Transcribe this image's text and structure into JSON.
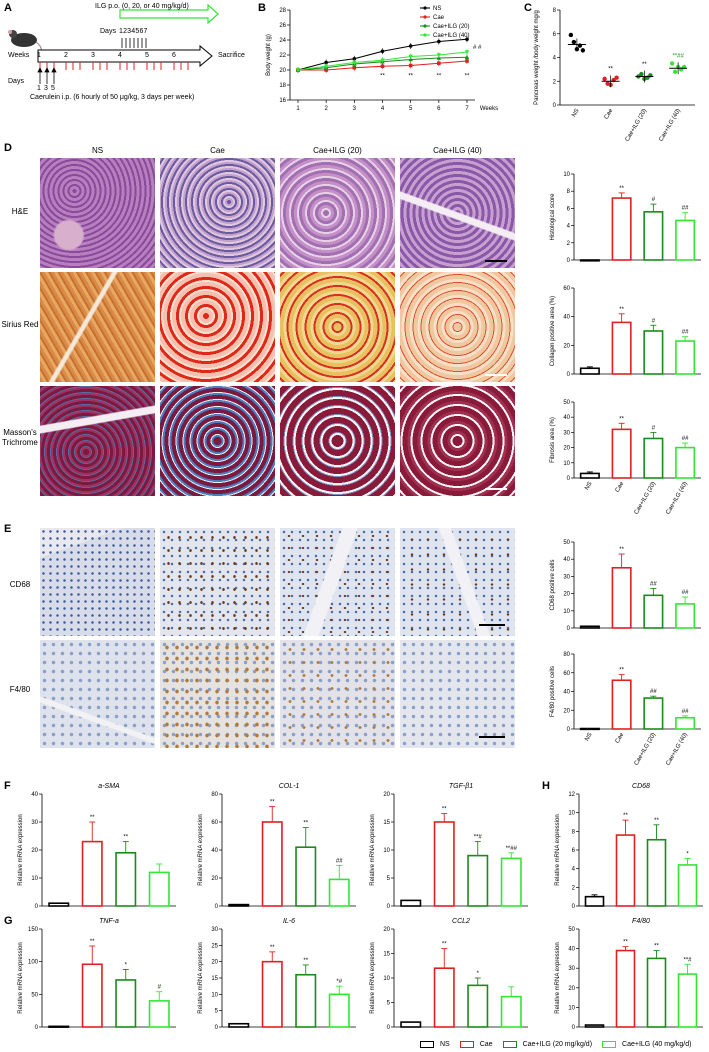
{
  "panels": {
    "A": {
      "letter": "A",
      "weeks_label": "Weeks",
      "sacrifice_label": "Sacrifice",
      "days_top_label": "Days",
      "days_top_values": "1234567",
      "ilg_label": "ILG p.o. (0, 20, or 40 mg/kg/d)",
      "week_ticks": [
        "1",
        "2",
        "3",
        "4",
        "5",
        "6"
      ],
      "days_bottom_label": "Days",
      "days_bottom_values": [
        "1",
        "3",
        "5"
      ],
      "caerulein_label": "Caerulein i.p. (6 hourly of 50 μg/kg, 3 days per week)"
    },
    "B": {
      "letter": "B",
      "weeks_unit": "Weeks",
      "sig_bottom": [
        "**",
        "**",
        "**",
        "**"
      ],
      "sig_top": "**",
      "sig_hash": "# #"
    },
    "C": {
      "letter": "C",
      "sig": [
        "**",
        "**",
        "**##"
      ]
    },
    "D": {
      "letter": "D",
      "col_titles": [
        "NS",
        "Cae",
        "Cae+ILG (20)",
        "Cae+ILG (40)"
      ],
      "row_labels": [
        "H&E",
        "Sirius Red",
        "Masson's\nTrichrome"
      ]
    },
    "E": {
      "letter": "E",
      "row_labels": [
        "CD68",
        "F4/80"
      ]
    },
    "F": {
      "letter": "F"
    },
    "G": {
      "letter": "G"
    },
    "H": {
      "letter": "H"
    },
    "legend": {
      "items": [
        {
          "label": "NS",
          "color": "#000000"
        },
        {
          "label": "Cae",
          "color": "#e02020"
        },
        {
          "label": "Cae+ILG (20 mg/kg/d)",
          "color": "#1a8a1a"
        },
        {
          "label": "Cae+ILG (40 mg/kg/d)",
          "color": "#33e633"
        }
      ]
    }
  },
  "chart_data": [
    {
      "id": "B",
      "type": "line",
      "ylabel": "Body weight (g)",
      "xlabel": "Weeks",
      "x": [
        1,
        2,
        3,
        4,
        5,
        6,
        7
      ],
      "ylim": [
        16,
        28
      ],
      "yticks": [
        16,
        18,
        20,
        22,
        24,
        26,
        28
      ],
      "series": [
        {
          "name": "NS",
          "color": "#000000",
          "marker": "circle",
          "values": [
            20.0,
            21.0,
            21.5,
            22.5,
            23.2,
            23.8,
            24.1
          ]
        },
        {
          "name": "Cae",
          "color": "#e02020",
          "marker": "square",
          "values": [
            20.0,
            20.0,
            20.3,
            20.5,
            20.6,
            20.9,
            21.2
          ]
        },
        {
          "name": "Cae+ILG (20)",
          "color": "#1a8a1a",
          "marker": "triangle",
          "values": [
            20.0,
            20.3,
            20.8,
            21.1,
            21.4,
            21.6,
            21.7
          ]
        },
        {
          "name": "Cae+ILG (40)",
          "color": "#33e633",
          "marker": "triangle-down",
          "values": [
            20.0,
            20.5,
            21.0,
            21.3,
            21.8,
            22.0,
            22.4
          ]
        }
      ]
    },
    {
      "id": "C",
      "type": "scatter",
      "ylabel": "Pancreas weight /body weight mg/g",
      "categories": [
        "NS",
        "Cae",
        "Cae+ILG (20)",
        "Cae+ILG (40)"
      ],
      "ylim": [
        0,
        8
      ],
      "yticks": [
        0,
        2,
        4,
        6,
        8
      ],
      "means": [
        5.1,
        2.0,
        2.4,
        3.1
      ],
      "points": [
        [
          5.9,
          5.3,
          4.7,
          5.0,
          4.6
        ],
        [
          2.2,
          1.8,
          1.7,
          2.1,
          2.3
        ],
        [
          2.4,
          2.6,
          2.2,
          2.3,
          2.5
        ],
        [
          3.5,
          2.8,
          3.2,
          3.0,
          3.2
        ]
      ]
    },
    {
      "id": "D1",
      "type": "bar",
      "ylabel": "Histological score",
      "ylim": [
        0,
        10
      ],
      "yticks": [
        0,
        2,
        4,
        6,
        8,
        10
      ],
      "categories": [
        "NS",
        "Cae",
        "Cae+ILG (20)",
        "Cae+ILG (40)"
      ],
      "values": [
        0,
        7.2,
        5.6,
        4.6
      ],
      "errors": [
        0,
        0.6,
        0.9,
        0.9
      ],
      "sig": [
        "",
        "**",
        "#",
        "##"
      ]
    },
    {
      "id": "D2",
      "type": "bar",
      "ylabel": "Collagen positive area (%)",
      "ylim": [
        0,
        60
      ],
      "yticks": [
        0,
        20,
        40,
        60
      ],
      "categories": [
        "NS",
        "Cae",
        "Cae+ILG (20)",
        "Cae+ILG (40)"
      ],
      "values": [
        4,
        36,
        30,
        23
      ],
      "errors": [
        1,
        6,
        4,
        3
      ],
      "sig": [
        "",
        "**",
        "#",
        "##"
      ]
    },
    {
      "id": "D3",
      "type": "bar",
      "ylabel": "Fibrosis area (%)",
      "ylim": [
        0,
        50
      ],
      "yticks": [
        0,
        10,
        20,
        30,
        40,
        50
      ],
      "categories": [
        "NS",
        "Cae",
        "Cae+ILG (20)",
        "Cae+ILG (40)"
      ],
      "values": [
        3,
        32,
        26,
        20
      ],
      "errors": [
        1,
        4,
        4,
        3
      ],
      "sig": [
        "",
        "**",
        "#",
        "##"
      ]
    },
    {
      "id": "E1",
      "type": "bar",
      "ylabel": "CD68 positive cells",
      "ylim": [
        0,
        50
      ],
      "yticks": [
        0,
        10,
        20,
        30,
        40,
        50
      ],
      "categories": [
        "NS",
        "Cae",
        "Cae+ILG (20)",
        "Cae+ILG (40)"
      ],
      "values": [
        1,
        35,
        19,
        14
      ],
      "errors": [
        0.5,
        8,
        4,
        4
      ],
      "sig": [
        "",
        "**",
        "##",
        "##"
      ]
    },
    {
      "id": "E2",
      "type": "bar",
      "ylabel": "F4/80 positive cells",
      "ylim": [
        0,
        80
      ],
      "yticks": [
        0,
        20,
        40,
        60,
        80
      ],
      "categories": [
        "NS",
        "Cae",
        "Cae+ILG (20)",
        "Cae+ILG (40)"
      ],
      "values": [
        0.5,
        52,
        33,
        12
      ],
      "errors": [
        0.3,
        6,
        2,
        2
      ],
      "sig": [
        "",
        "**",
        "##",
        "##"
      ]
    },
    {
      "id": "F1",
      "type": "bar",
      "title": "a-SMA",
      "ylabel": "Relative mRNA expression",
      "ylim": [
        0,
        40
      ],
      "yticks": [
        0,
        10,
        20,
        30,
        40
      ],
      "categories": [
        "NS",
        "Cae",
        "Cae+ILG (20)",
        "Cae+ILG (40)"
      ],
      "values": [
        1,
        23,
        19,
        12
      ],
      "errors": [
        0.3,
        7,
        4,
        3
      ],
      "sig": [
        "",
        "**",
        "**",
        ""
      ]
    },
    {
      "id": "F2",
      "type": "bar",
      "title": "COL-1",
      "ylabel": "Relative mRNA expression",
      "ylim": [
        0,
        80
      ],
      "yticks": [
        0,
        20,
        40,
        60,
        80
      ],
      "categories": [
        "NS",
        "Cae",
        "Cae+ILG (20)",
        "Cae+ILG (40)"
      ],
      "values": [
        1,
        60,
        42,
        19
      ],
      "errors": [
        0.5,
        11,
        14,
        10
      ],
      "sig": [
        "",
        "**",
        "**",
        "##"
      ]
    },
    {
      "id": "F3",
      "type": "bar",
      "title": "TGF-β1",
      "ylabel": "Relative mRNA expression",
      "ylim": [
        0,
        20
      ],
      "yticks": [
        0,
        5,
        10,
        15,
        20
      ],
      "categories": [
        "NS",
        "Cae",
        "Cae+ILG (20)",
        "Cae+ILG (40)"
      ],
      "values": [
        1,
        15,
        9,
        8.5
      ],
      "errors": [
        0.2,
        1.5,
        2.5,
        1
      ],
      "sig": [
        "",
        "**",
        "**#",
        "**##"
      ]
    },
    {
      "id": "H1",
      "type": "bar",
      "title": "CD68",
      "ylabel": "Relative mRNA expression",
      "ylim": [
        0,
        12
      ],
      "yticks": [
        0,
        2,
        4,
        6,
        8,
        10,
        12
      ],
      "categories": [
        "NS",
        "Cae",
        "Cae+ILG (20)",
        "Cae+ILG (40)"
      ],
      "values": [
        1,
        7.6,
        7.1,
        4.4
      ],
      "errors": [
        0.2,
        1.6,
        1.6,
        0.7
      ],
      "sig": [
        "",
        "**",
        "**",
        "*"
      ]
    },
    {
      "id": "G1",
      "type": "bar",
      "title": "TNF-a",
      "ylabel": "Relative mRNA expression",
      "ylim": [
        0,
        150
      ],
      "yticks": [
        0,
        50,
        100,
        150
      ],
      "categories": [
        "NS",
        "Cae",
        "Cae+ILG (20)",
        "Cae+ILG (40)"
      ],
      "values": [
        1,
        96,
        72,
        40
      ],
      "errors": [
        0.5,
        28,
        16,
        14
      ],
      "sig": [
        "",
        "**",
        "*",
        "#"
      ]
    },
    {
      "id": "G2",
      "type": "bar",
      "title": "IL-6",
      "ylabel": "Relative mRNA expression",
      "ylim": [
        0,
        30
      ],
      "yticks": [
        0,
        5,
        10,
        15,
        20,
        25,
        30
      ],
      "categories": [
        "NS",
        "Cae",
        "Cae+ILG (20)",
        "Cae+ILG (40)"
      ],
      "values": [
        1,
        20,
        16,
        10
      ],
      "errors": [
        0.2,
        3,
        3,
        2.5
      ],
      "sig": [
        "",
        "**",
        "**",
        "*#"
      ]
    },
    {
      "id": "G3",
      "type": "bar",
      "title": "CCL2",
      "ylabel": "Relative mRNA expression",
      "ylim": [
        0,
        20
      ],
      "yticks": [
        0,
        5,
        10,
        15,
        20
      ],
      "categories": [
        "NS",
        "Cae",
        "Cae+ILG (20)",
        "Cae+ILG (40)"
      ],
      "values": [
        1,
        12,
        8.5,
        6.2
      ],
      "errors": [
        0.2,
        4,
        1.5,
        2
      ],
      "sig": [
        "",
        "**",
        "*",
        ""
      ]
    },
    {
      "id": "H2",
      "type": "bar",
      "title": "F4/80",
      "ylabel": "Relative mRNA expression",
      "ylim": [
        0,
        50
      ],
      "yticks": [
        0,
        10,
        20,
        30,
        40,
        50
      ],
      "categories": [
        "NS",
        "Cae",
        "Cae+ILG (20)",
        "Cae+ILG (40)"
      ],
      "values": [
        1,
        39,
        35,
        27
      ],
      "errors": [
        0.3,
        2,
        4,
        5
      ],
      "sig": [
        "",
        "**",
        "**",
        "**#"
      ]
    }
  ]
}
